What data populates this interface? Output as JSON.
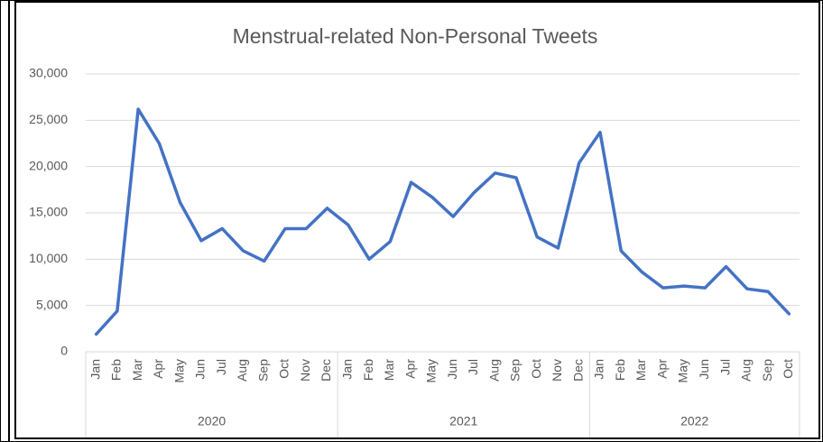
{
  "chart_data": {
    "type": "line",
    "title": "Menstrual-related Non-Personal Tweets",
    "category_groups": [
      {
        "label": "2020",
        "categories": [
          "Jan",
          "Feb",
          "Mar",
          "Apr",
          "May",
          "Jun",
          "Jul",
          "Aug",
          "Sep",
          "Oct",
          "Nov",
          "Dec"
        ]
      },
      {
        "label": "2021",
        "categories": [
          "Jan",
          "Feb",
          "Mar",
          "Apr",
          "May",
          "Jun",
          "Jul",
          "Aug",
          "Sep",
          "Oct",
          "Nov",
          "Dec"
        ]
      },
      {
        "label": "2022",
        "categories": [
          "Jan",
          "Feb",
          "Mar",
          "Apr",
          "May",
          "Jun",
          "Jul",
          "Aug",
          "Sep",
          "Oct"
        ]
      }
    ],
    "series": [
      {
        "name": "Tweets",
        "color": "#4472c4",
        "values": [
          1900,
          4400,
          26200,
          22500,
          16100,
          12000,
          13300,
          10900,
          9800,
          13300,
          13300,
          15500,
          13700,
          10000,
          11900,
          18300,
          16700,
          14600,
          17200,
          19300,
          18800,
          12400,
          11200,
          20400,
          23700,
          10900,
          8600,
          6900,
          7100,
          6900,
          9200,
          6800,
          6500,
          4100
        ]
      }
    ],
    "ylim": [
      0,
      30000
    ],
    "yticks": [
      0,
      {
        "value": 5000,
        "label": "5,000"
      },
      {
        "value": 10000,
        "label": "10,000"
      },
      {
        "value": 15000,
        "label": "15,000"
      },
      {
        "value": 20000,
        "label": "20,000"
      },
      {
        "value": 25000,
        "label": "25,000"
      },
      {
        "value": 30000,
        "label": "30,000"
      }
    ],
    "grid": true
  }
}
